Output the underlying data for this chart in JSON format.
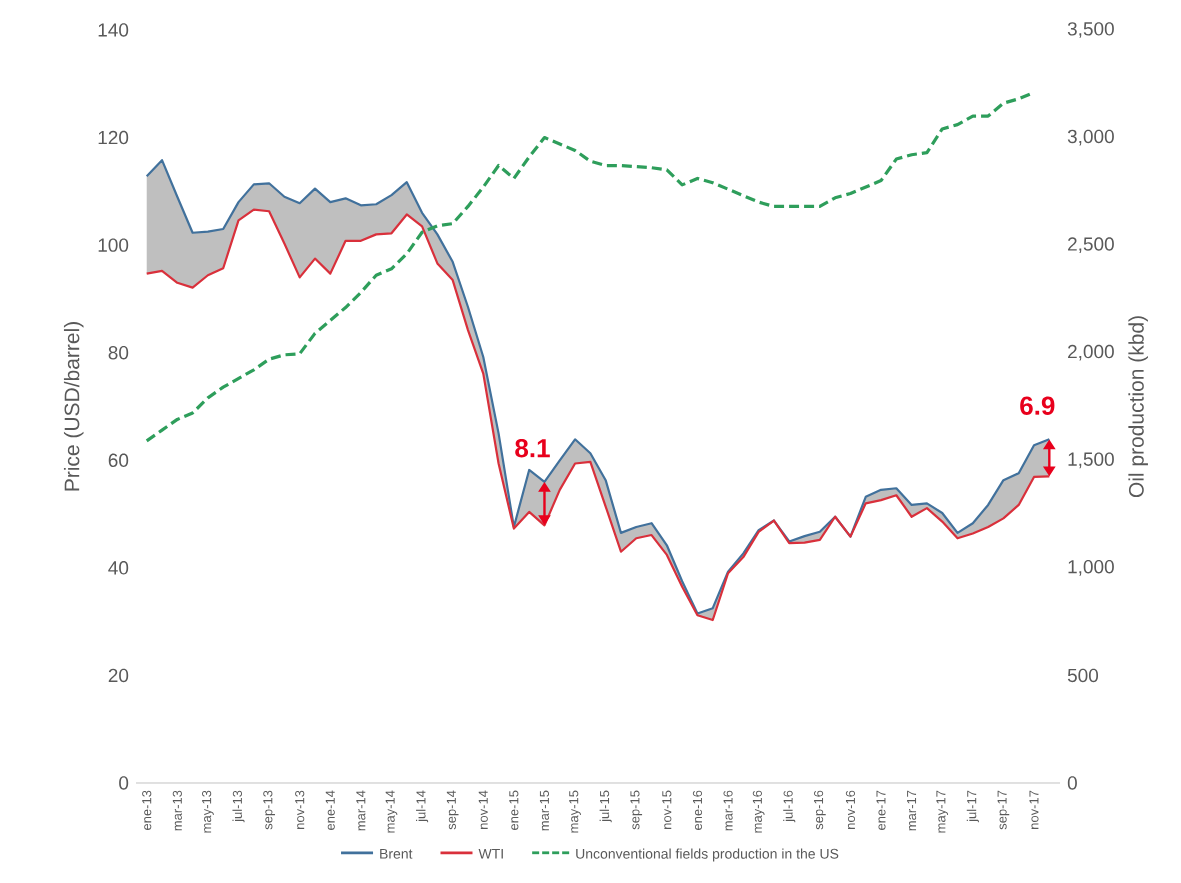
{
  "chart_data": {
    "type": "line",
    "ylabel": "Price (USD/barrel)",
    "y2label": "Oil production (kbd)",
    "categories": [
      "ene-13",
      null,
      "mar-13",
      null,
      "may-13",
      null,
      "jul-13",
      null,
      "sep-13",
      null,
      "nov-13",
      null,
      "ene-14",
      null,
      "mar-14",
      null,
      "may-14",
      null,
      "jul-14",
      null,
      "sep-14",
      null,
      "nov-14",
      null,
      "ene-15",
      null,
      "mar-15",
      null,
      "may-15",
      null,
      "jul-15",
      null,
      "sep-15",
      null,
      "nov-15",
      null,
      "ene-16",
      null,
      "mar-16",
      null,
      "may-16",
      null,
      "jul-16",
      null,
      "sep-16",
      null,
      "nov-16",
      null,
      "ene-17",
      null,
      "mar-17",
      null,
      "may-17",
      null,
      "jul-17",
      null,
      "sep-17",
      null,
      "nov-17",
      null
    ],
    "series": [
      {
        "name": "Brent",
        "color": "#41719c",
        "values": [
          112.8,
          115.8,
          109,
          102.3,
          102.5,
          103,
          108,
          111.3,
          111.5,
          109,
          107.8,
          110.5,
          108,
          108.7,
          107.4,
          107.6,
          109.3,
          111.7,
          106,
          102,
          96.9,
          88.5,
          79.2,
          65,
          47.6,
          58.2,
          56,
          60,
          63.9,
          61.3,
          56.3,
          46.5,
          47.6,
          48.3,
          44.2,
          37.5,
          31.5,
          32.5,
          39.3,
          42.7,
          47,
          48.8,
          44.9,
          45.9,
          46.7,
          49.5,
          45.8,
          53.2,
          54.5,
          54.8,
          51.7,
          52,
          50.2,
          46.5,
          48.3,
          51.7,
          56.3,
          57.6,
          62.8,
          63.9
        ],
        "lower": [
          94.7,
          95.2,
          93,
          92.1,
          94.4,
          95.7,
          104.6,
          106.6,
          106.3,
          100.3,
          94,
          97.5,
          94.7,
          100.8,
          100.8,
          102,
          102.2,
          105.7,
          103.5,
          96.6,
          93.5,
          84.2,
          76.1,
          59.4,
          47.3,
          50.4,
          47.9,
          54.5,
          59.4,
          59.7,
          51.4,
          43,
          45.5,
          46.1,
          42.4,
          36.5,
          31.2,
          30.3,
          39,
          42,
          46.7,
          48.8,
          44.6,
          44.7,
          45.2,
          49.5,
          45.8,
          52,
          52.6,
          53.5,
          49.5,
          51.1,
          48.6,
          45.5,
          46.4,
          47.6,
          49.2,
          51.7,
          56.9,
          57
        ],
        "upper": [
          112.8,
          115.8,
          109,
          102.3,
          102.5,
          103,
          108,
          111.3,
          111.5,
          109,
          107.8,
          110.5,
          108,
          108.7,
          107.4,
          107.6,
          109.3,
          111.7,
          106,
          102,
          96.9,
          88.5,
          79.2,
          65,
          47.6,
          58.2,
          56,
          60,
          63.9,
          61.3,
          56.3,
          46.5,
          47.6,
          48.3,
          44.2,
          37.5,
          31.5,
          32.5,
          39.3,
          42.7,
          47,
          48.8,
          44.9,
          45.9,
          46.7,
          49.5,
          45.8,
          53.2,
          54.5,
          54.8,
          51.7,
          52,
          50.2,
          46.5,
          48.3,
          51.7,
          56.3,
          57.6,
          62.8,
          63.9
        ]
      },
      {
        "name": "WTI",
        "color": "#d9303b",
        "values": [
          94.7,
          95.2,
          93,
          92.1,
          94.4,
          95.7,
          104.6,
          106.6,
          106.3,
          100.3,
          94,
          97.5,
          94.7,
          100.8,
          100.8,
          102,
          102.2,
          105.7,
          103.5,
          96.6,
          93.5,
          84.2,
          76.1,
          59.4,
          47.3,
          50.4,
          47.9,
          54.5,
          59.4,
          59.7,
          51.4,
          43,
          45.5,
          46.1,
          42.4,
          36.5,
          31.2,
          30.3,
          39,
          42,
          46.7,
          48.8,
          44.6,
          44.7,
          45.2,
          49.5,
          45.8,
          52,
          52.6,
          53.5,
          49.5,
          51.1,
          48.6,
          45.5,
          46.4,
          47.6,
          49.2,
          51.7,
          56.9,
          57
        ]
      },
      {
        "name": "Unconventional fields production in the US",
        "color": "#2e9e5b",
        "axis": "y2",
        "line_style": "dashed",
        "values": [
          1590,
          1640,
          1690,
          1720,
          1790,
          1840,
          1880,
          1920,
          1970,
          1990,
          1995,
          2090,
          2150,
          2210,
          2280,
          2360,
          2390,
          2460,
          2560,
          2590,
          2600,
          2680,
          2770,
          2870,
          2810,
          2910,
          3000,
          2970,
          2940,
          2890,
          2870,
          2870,
          2865,
          2860,
          2850,
          2780,
          2810,
          2790,
          2760,
          2730,
          2700,
          2680,
          2680,
          2680,
          2680,
          2720,
          2740,
          2770,
          2800,
          2900,
          2920,
          2930,
          3040,
          3060,
          3100,
          3100,
          3160,
          3180,
          3210,
          null
        ]
      }
    ],
    "ylim": [
      0,
      140
    ],
    "yticks": [
      0,
      20,
      40,
      60,
      80,
      100,
      120,
      140
    ],
    "y2lim": [
      0,
      3500
    ],
    "y2ticks": [
      0,
      {
        "value": 500,
        "label": "500"
      },
      {
        "value": 1000,
        "label": "1,000"
      },
      {
        "value": 1500,
        "label": "1,500"
      },
      {
        "value": 2000,
        "label": "2,000"
      },
      {
        "value": 2500,
        "label": "2,500"
      },
      {
        "value": 3000,
        "label": "3,000"
      },
      {
        "value": 3500,
        "label": "3,500"
      }
    ],
    "annotations": [
      {
        "text": "8.1",
        "x": "mar-15",
        "y": 56
      },
      {
        "text": "6.9",
        "y": 63.9
      }
    ],
    "legend": "bottom"
  }
}
